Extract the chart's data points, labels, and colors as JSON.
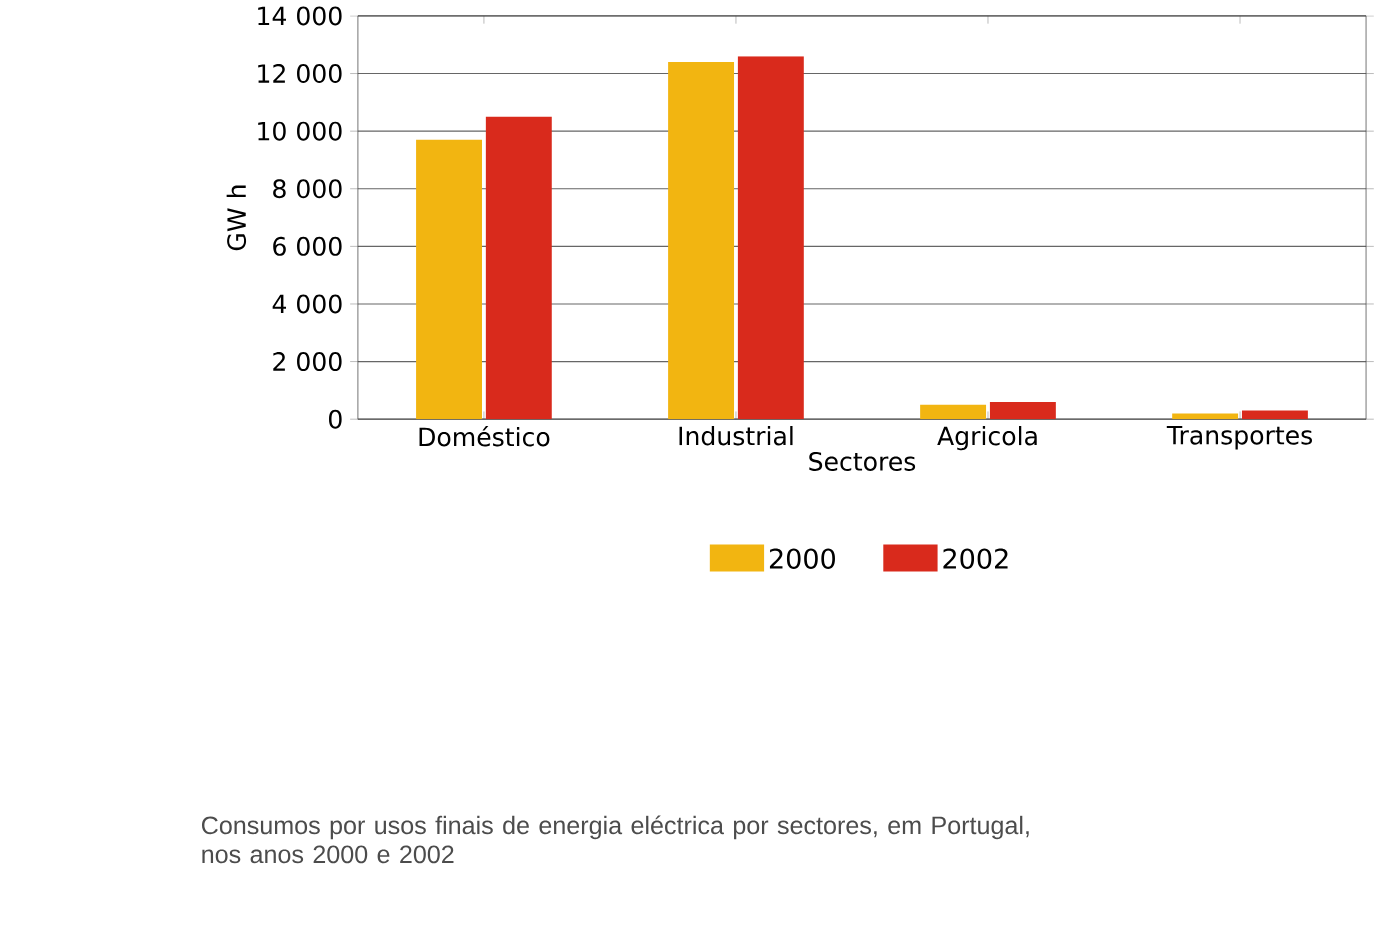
{
  "chart_data": {
    "type": "bar",
    "xlabel": "Sectores",
    "ylabel": "GW h",
    "categories": [
      "Doméstico",
      "Industrial",
      "Agricola",
      "Transportes"
    ],
    "series": [
      {
        "name": "2000",
        "color": "#f2b511",
        "values": [
          9700,
          12400,
          500,
          200
        ]
      },
      {
        "name": "2002",
        "color": "#d92a1c",
        "values": [
          10500,
          12600,
          600,
          300
        ]
      }
    ],
    "ylim": [
      0,
      14000
    ],
    "yticks": [
      {
        "value": 0,
        "label": "0"
      },
      {
        "value": 2000,
        "label": "2 000"
      },
      {
        "value": 4000,
        "label": "4 000"
      },
      {
        "value": 6000,
        "label": "6 000"
      },
      {
        "value": 8000,
        "label": "8 000"
      },
      {
        "value": 10000,
        "label": "10 000"
      },
      {
        "value": 12000,
        "label": "12 000"
      },
      {
        "value": 14000,
        "label": "14 000"
      }
    ],
    "grid": "y",
    "legend": "bottom",
    "annotations": [
      "Consumos por usos finais de energia eléctrica por sectores, em Portugal, nos anos 2000 e 2002"
    ]
  }
}
